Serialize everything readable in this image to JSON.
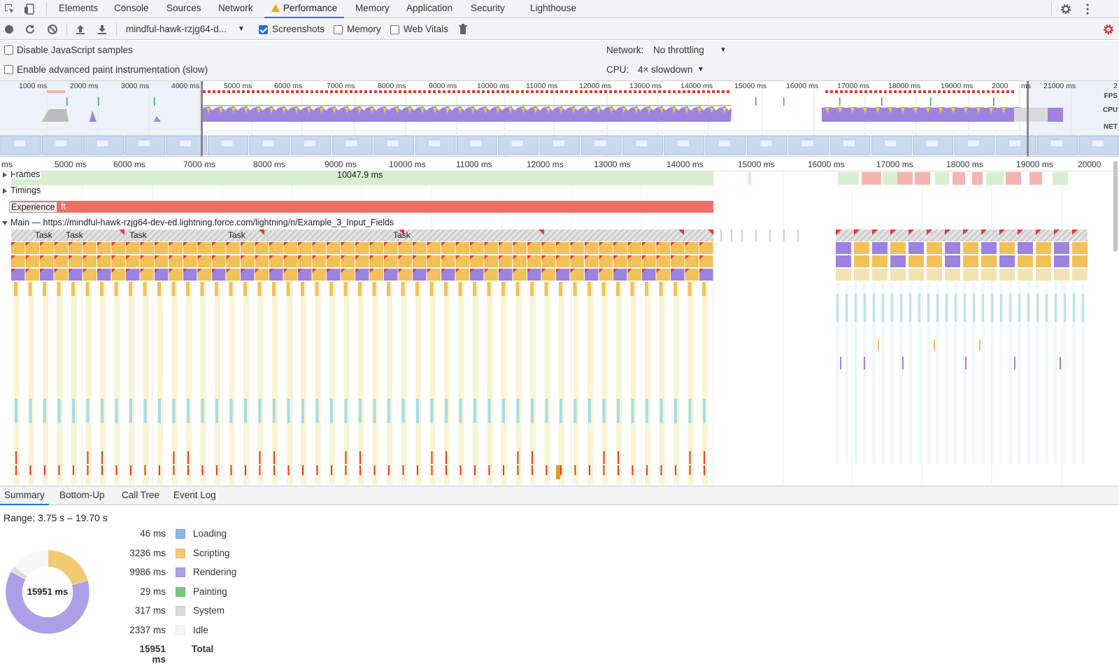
{
  "tabs": [
    "Elements",
    "Console",
    "Sources",
    "Network",
    "Performance",
    "Memory",
    "Application",
    "Security",
    "Lighthouse"
  ],
  "active_tab": "Performance",
  "toolbar": {
    "profile_select": "mindful-hawk-rzjg64-d...",
    "screenshots_label": "Screenshots",
    "screenshots_checked": true,
    "memory_label": "Memory",
    "memory_checked": false,
    "webvitals_label": "Web Vitals",
    "webvitals_checked": false
  },
  "settings": {
    "disable_js_label": "Disable JavaScript samples",
    "paint_label": "Enable advanced paint instrumentation (slow)",
    "network_label": "Network:",
    "network_value": "No throttling",
    "cpu_label": "CPU:",
    "cpu_value": "4× slowdown"
  },
  "overview": {
    "ticks": [
      "1000 ms",
      "2000 ms",
      "3000 ms",
      "4000 ms",
      "5000 ms",
      "6000 ms",
      "7000 ms",
      "8000 ms",
      "9000 ms",
      "10000 ms",
      "11000 ms",
      "12000 ms",
      "13000 ms",
      "14000 ms",
      "15000 ms",
      "16000 ms",
      "17000 ms",
      "18000 ms",
      "19000 ms",
      "2000",
      "ms",
      "21000 ms",
      "2"
    ],
    "side_labels": [
      "FPS",
      "CPU",
      "NET"
    ]
  },
  "ruler": {
    "ticks": [
      "ms",
      "5000 ms",
      "6000 ms",
      "7000 ms",
      "8000 ms",
      "9000 ms",
      "10000 ms",
      "11000 ms",
      "12000 ms",
      "13000 ms",
      "14000 ms",
      "15000 ms",
      "16000 ms",
      "17000 ms",
      "18000 ms",
      "19000 ms",
      "20000"
    ]
  },
  "tracks": {
    "frames_label": "Frames",
    "frames_value": "10047.9 ms",
    "timings_label": "Timings",
    "experience_label": "Experience",
    "experience_suffix": "ft",
    "main_label": "Main — https://mindful-hawk-rzjg64-dev-ed.lightning.force.com/lightning/n/Example_3_Input_Fields",
    "task_labels": [
      "Task",
      "Task",
      "Task",
      "Task",
      "Task"
    ]
  },
  "bottom_tabs": [
    "Summary",
    "Bottom-Up",
    "Call Tree",
    "Event Log"
  ],
  "active_bottom_tab": "Summary",
  "summary": {
    "range": "Range: 3.75 s – 19.70 s",
    "total_center": "15951 ms",
    "items": [
      {
        "value": "46 ms",
        "name": "Loading",
        "ms": 46,
        "color": "#8cb4e8"
      },
      {
        "value": "3236 ms",
        "name": "Scripting",
        "ms": 3236,
        "color": "#f2ca72"
      },
      {
        "value": "9986 ms",
        "name": "Rendering",
        "ms": 9986,
        "color": "#ae9ee8"
      },
      {
        "value": "29 ms",
        "name": "Painting",
        "ms": 29,
        "color": "#80c186"
      },
      {
        "value": "317 ms",
        "name": "System",
        "ms": 317,
        "color": "#dadada"
      },
      {
        "value": "2337 ms",
        "name": "Idle",
        "ms": 2337,
        "color": "#f7f7f7"
      }
    ],
    "total_value": "15951 ms",
    "total_name": "Total"
  },
  "colors": {
    "accent": "#1a73e8",
    "scripting": "#f2c15a",
    "rendering": "#9d83e0",
    "experience": "#ef6d64",
    "frames": "#d7efcf"
  }
}
